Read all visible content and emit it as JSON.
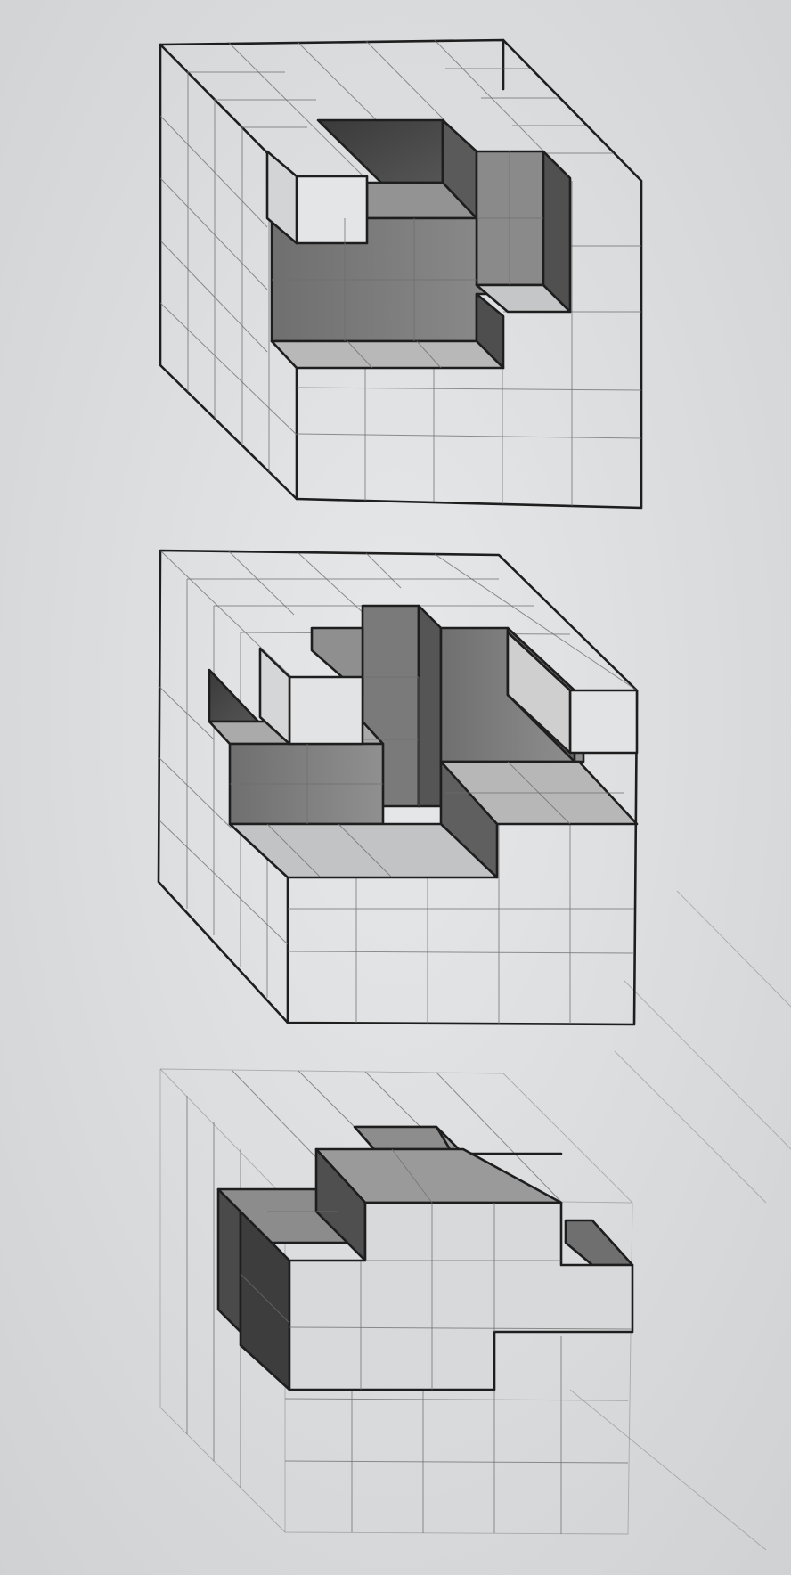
{
  "image": {
    "subject": "pencil-drawing-isometric-cube-studies",
    "colors": {
      "paper": "#dfe1e3",
      "ink": "#1e1e1e",
      "darkest": "#3b3b3b",
      "dark": "#5c5c5c",
      "mid": "#838383",
      "light": "#a9a9a9",
      "pale": "#cfd0d1"
    }
  }
}
